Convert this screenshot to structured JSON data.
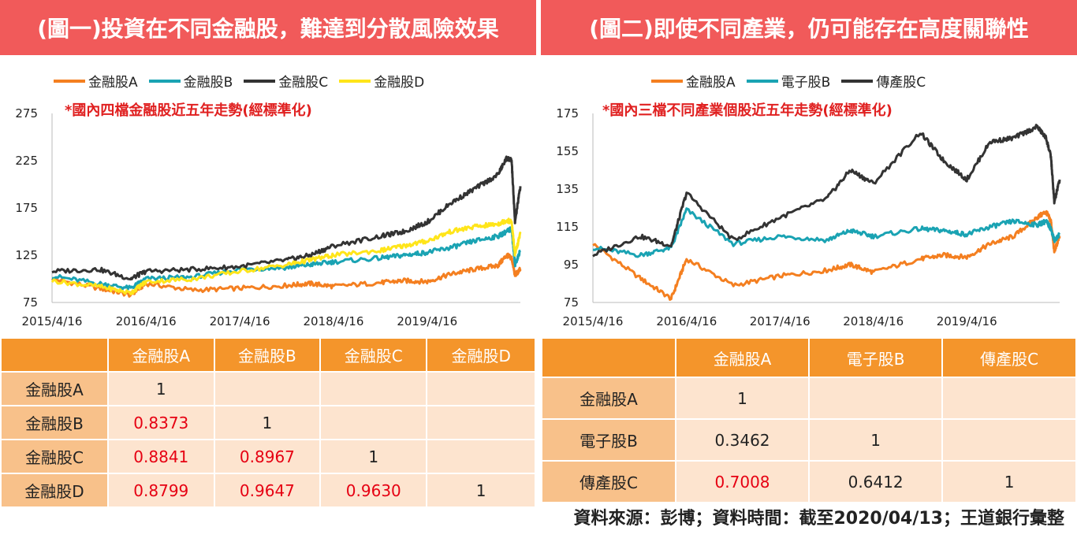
{
  "footer": {
    "source": "資料來源：彭博；資料時間：截至2020/04/13；王道銀行彙整"
  },
  "panels": [
    {
      "title": "(圖一)投資在不同金融股，難達到分散風險效果",
      "note": "*國內四檔金融股近五年走勢(經標準化)",
      "table": {
        "columns": [
          "金融股A",
          "金融股B",
          "金融股C",
          "金融股D"
        ],
        "rows": [
          {
            "label": "金融股A",
            "cells": [
              "1",
              "",
              "",
              ""
            ]
          },
          {
            "label": "金融股B",
            "cells": [
              "0.8373",
              "1",
              "",
              ""
            ]
          },
          {
            "label": "金融股C",
            "cells": [
              "0.8841",
              "0.8967",
              "1",
              ""
            ]
          },
          {
            "label": "金融股D",
            "cells": [
              "0.8799",
              "0.9647",
              "0.9630",
              "1"
            ]
          }
        ]
      }
    },
    {
      "title": "(圖二)即使不同產業，仍可能存在高度關聯性",
      "note": "*國內三檔不同產業個股近五年走勢(經標準化)",
      "table": {
        "columns": [
          "金融股A",
          "電子股B",
          "傳產股C"
        ],
        "rows": [
          {
            "label": "金融股A",
            "cells": [
              "1",
              "",
              ""
            ]
          },
          {
            "label": "電子股B",
            "cells": [
              "0.3462",
              "1",
              ""
            ]
          },
          {
            "label": "傳產股C",
            "cells": [
              "0.7008",
              "0.6412",
              "1"
            ]
          }
        ]
      }
    }
  ],
  "colors": {
    "banner": "#f15a5a",
    "table_header": "#f4952b",
    "row_header": "#f8c18a",
    "cell": "#fde4cf",
    "highlight": "#e60012"
  },
  "chart_data": [
    {
      "type": "line",
      "x_ticks": [
        "2015/4/16",
        "2016/4/16",
        "2017/4/16",
        "2018/4/16",
        "2019/4/16"
      ],
      "ylim": [
        75,
        275
      ],
      "y_ticks": [
        75,
        125,
        175,
        225,
        275
      ],
      "x": [
        "2015/4/16",
        "2015/10/16",
        "2016/2/16",
        "2016/4/16",
        "2016/10/16",
        "2017/4/16",
        "2017/10/16",
        "2018/1/16",
        "2018/4/16",
        "2018/10/16",
        "2019/1/16",
        "2019/4/16",
        "2019/7/16",
        "2019/10/16",
        "2020/1/16",
        "2020/2/20",
        "2020/3/10",
        "2020/3/23",
        "2020/4/13"
      ],
      "series": [
        {
          "name": "金融股A",
          "color": "#f47f20",
          "values": [
            100,
            90,
            83,
            95,
            88,
            90,
            93,
            95,
            92,
            96,
            98,
            97,
            105,
            110,
            114,
            125,
            122,
            104,
            110
          ]
        },
        {
          "name": "金融股B",
          "color": "#1aa3b3",
          "values": [
            103,
            95,
            90,
            100,
            102,
            110,
            112,
            115,
            118,
            122,
            125,
            128,
            133,
            140,
            145,
            150,
            153,
            115,
            130
          ]
        },
        {
          "name": "金融股C",
          "color": "#333333",
          "values": [
            108,
            110,
            100,
            108,
            110,
            113,
            120,
            125,
            135,
            145,
            150,
            160,
            180,
            195,
            210,
            228,
            225,
            160,
            198
          ]
        },
        {
          "name": "金融股D",
          "color": "#ffe51a",
          "values": [
            98,
            92,
            85,
            97,
            100,
            108,
            115,
            120,
            125,
            130,
            135,
            140,
            150,
            155,
            158,
            162,
            160,
            125,
            148
          ]
        }
      ]
    },
    {
      "type": "line",
      "x_ticks": [
        "2015/4/16",
        "2016/4/16",
        "2017/4/16",
        "2018/4/16",
        "2019/4/16"
      ],
      "ylim": [
        75,
        175
      ],
      "y_ticks": [
        75,
        95,
        115,
        135,
        155,
        175
      ],
      "x": [
        "2015/4/16",
        "2015/10/16",
        "2016/2/16",
        "2016/4/16",
        "2016/10/16",
        "2017/4/16",
        "2017/10/16",
        "2018/1/16",
        "2018/4/16",
        "2018/10/16",
        "2019/1/16",
        "2019/4/16",
        "2019/7/16",
        "2019/10/16",
        "2020/1/16",
        "2020/2/20",
        "2020/3/10",
        "2020/3/23",
        "2020/4/13"
      ],
      "series": [
        {
          "name": "金融股A",
          "color": "#f47f20",
          "values": [
            106,
            88,
            77,
            98,
            84,
            89,
            92,
            95,
            91,
            98,
            100,
            99,
            106,
            110,
            120,
            123,
            118,
            102,
            110
          ]
        },
        {
          "name": "電子股B",
          "color": "#1aa3b3",
          "values": [
            104,
            100,
            104,
            124,
            106,
            110,
            108,
            113,
            110,
            114,
            113,
            111,
            115,
            118,
            116,
            118,
            114,
            108,
            111
          ]
        },
        {
          "name": "傳產股C",
          "color": "#333333",
          "values": [
            100,
            110,
            105,
            133,
            108,
            120,
            130,
            145,
            138,
            165,
            150,
            140,
            160,
            162,
            168,
            162,
            152,
            128,
            140
          ]
        }
      ]
    }
  ]
}
